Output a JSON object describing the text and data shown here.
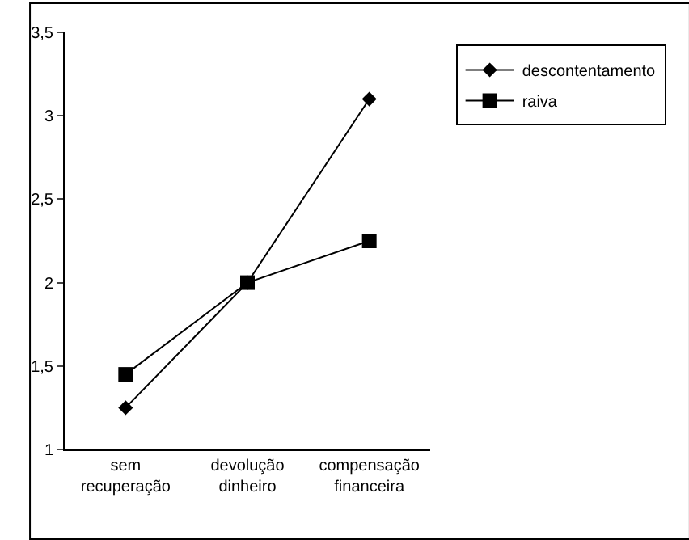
{
  "chart_data": {
    "type": "line",
    "categories": [
      "sem\nrecuperação",
      "devolução\ndinheiro",
      "compensação\nfinanceira"
    ],
    "series": [
      {
        "name": "descontentamento",
        "color": "#000000",
        "values": [
          1.25,
          2.0,
          3.1
        ],
        "marker": "diamond"
      },
      {
        "name": "raiva",
        "color": "#000000",
        "values": [
          1.45,
          2.0,
          2.25
        ],
        "marker": "square"
      }
    ],
    "ylim": [
      1,
      3.5
    ],
    "yticks": [
      1,
      {
        "value": 1.5,
        "label": "1,5"
      },
      2,
      {
        "value": 2.5,
        "label": "2,5"
      },
      3,
      {
        "value": 3.5,
        "label": "3,5"
      }
    ],
    "grid": false,
    "legend": "top right",
    "line_style": "solid"
  }
}
